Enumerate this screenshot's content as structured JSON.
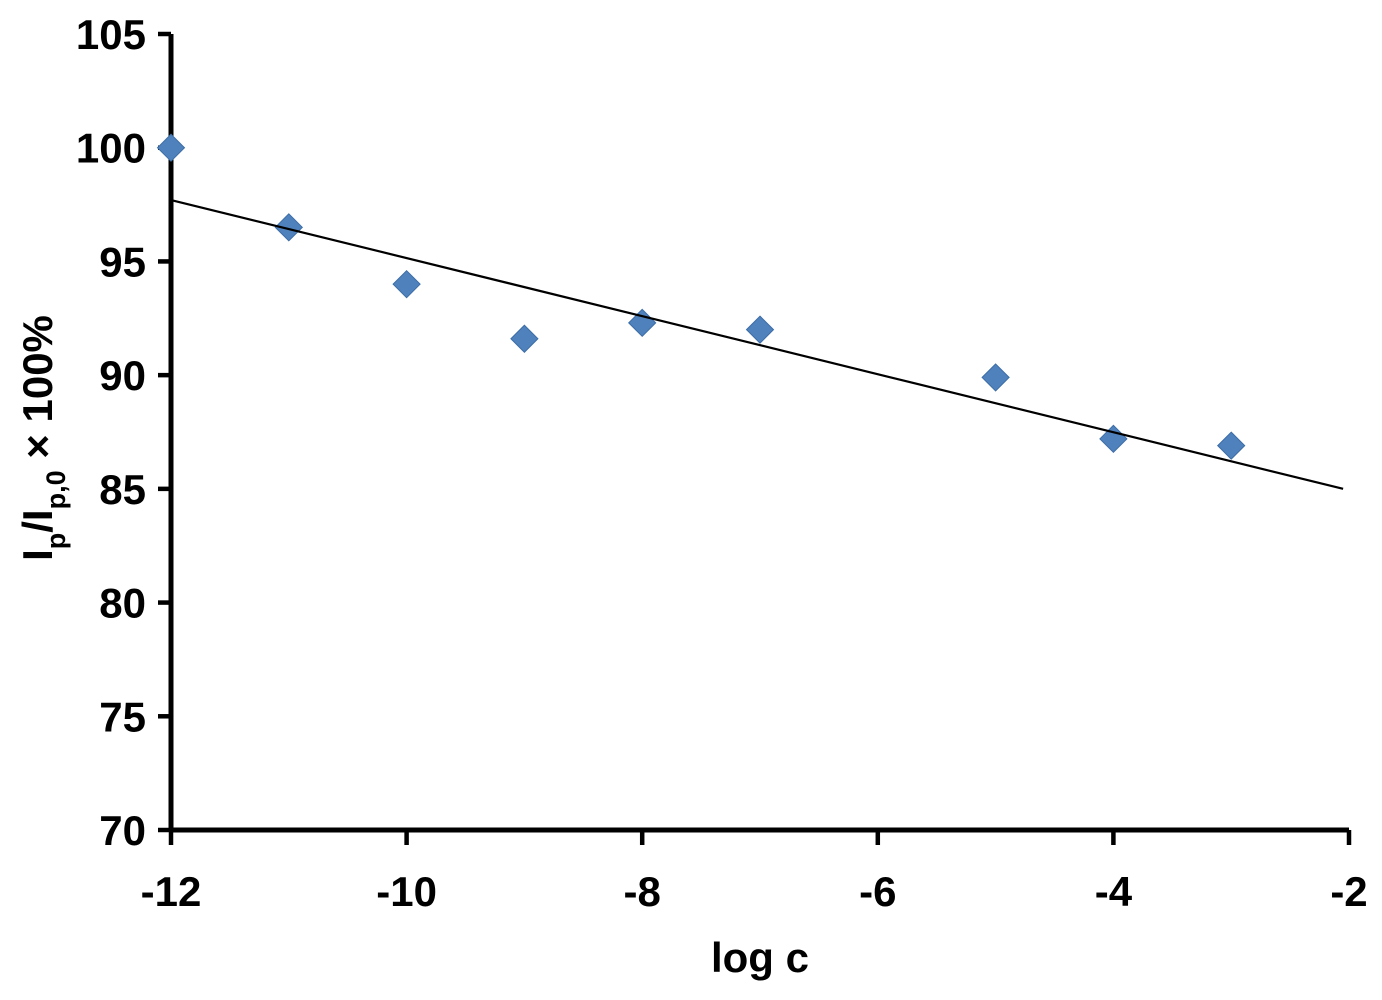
{
  "chart_data": {
    "type": "scatter",
    "title": "",
    "xlabel": "log c",
    "ylabel_plain": "Ip/Ip,0 × 100%",
    "ylabel_segments": [
      {
        "text": "I",
        "sub": false
      },
      {
        "text": "p",
        "sub": true
      },
      {
        "text": "/I",
        "sub": false
      },
      {
        "text": "p,0",
        "sub": true
      },
      {
        "text": " × 100%",
        "sub": false
      }
    ],
    "xlim": [
      -12,
      -2
    ],
    "ylim": [
      70,
      105
    ],
    "xticks": [
      -12,
      -10,
      -8,
      -6,
      -4,
      -2
    ],
    "yticks": [
      70,
      75,
      80,
      85,
      90,
      95,
      100,
      105
    ],
    "grid": false,
    "legend": null,
    "points": [
      {
        "x": -12,
        "y": 100
      },
      {
        "x": -11,
        "y": 96.5
      },
      {
        "x": -10,
        "y": 94
      },
      {
        "x": -9,
        "y": 91.6
      },
      {
        "x": -8,
        "y": 92.3
      },
      {
        "x": -7,
        "y": 92
      },
      {
        "x": -5,
        "y": 89.9
      },
      {
        "x": -4,
        "y": 87.2
      },
      {
        "x": -3,
        "y": 86.9
      }
    ],
    "trendline": {
      "x1": -12,
      "y1": 97.7,
      "x2": -2.05,
      "y2": 85.0
    },
    "marker": {
      "shape": "diamond",
      "color": "#4F81BD",
      "border_color": "#3C6DA6",
      "size": 27
    },
    "line_color": "#000000",
    "axis_color": "#000000",
    "background": "#ffffff"
  }
}
